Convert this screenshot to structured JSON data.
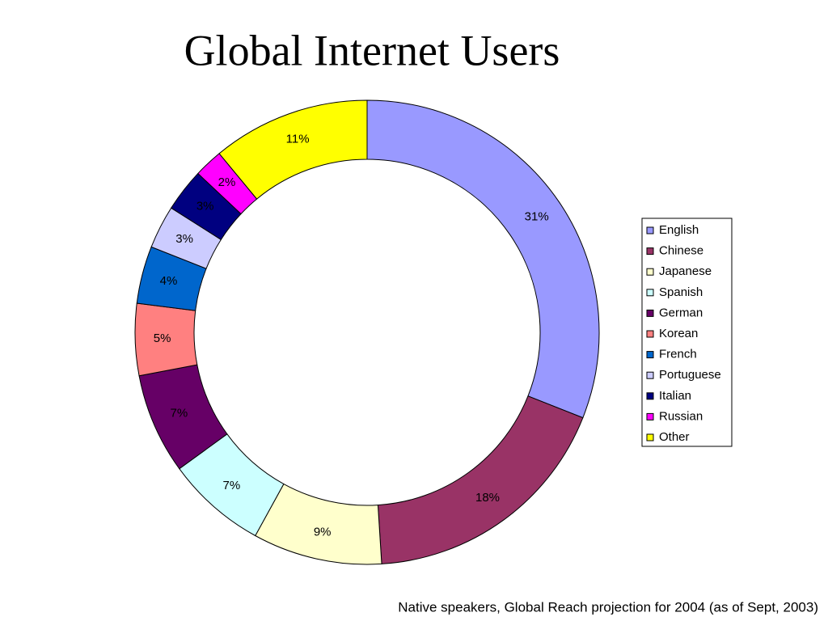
{
  "chart_data": {
    "type": "donut",
    "title": "Global Internet Users",
    "subtitle": "Native speakers, Global Reach projection for 2004 (as of Sept, 2003)",
    "categories": [
      "English",
      "Chinese",
      "Japanese",
      "Spanish",
      "German",
      "Korean",
      "French",
      "Portuguese",
      "Italian",
      "Russian",
      "Other"
    ],
    "values": [
      31,
      18,
      9,
      7,
      7,
      5,
      4,
      3,
      3,
      2,
      11
    ],
    "value_labels": [
      "31%",
      "18%",
      "9%",
      "7%",
      "7%",
      "5%",
      "4%",
      "3%",
      "3%",
      "2%",
      "11%"
    ],
    "colors": [
      "#9999ff",
      "#993366",
      "#ffffcc",
      "#ccffff",
      "#660066",
      "#ff8080",
      "#0066cc",
      "#ccccff",
      "#000080",
      "#ff00ff",
      "#ffff00"
    ],
    "legend": "right"
  }
}
